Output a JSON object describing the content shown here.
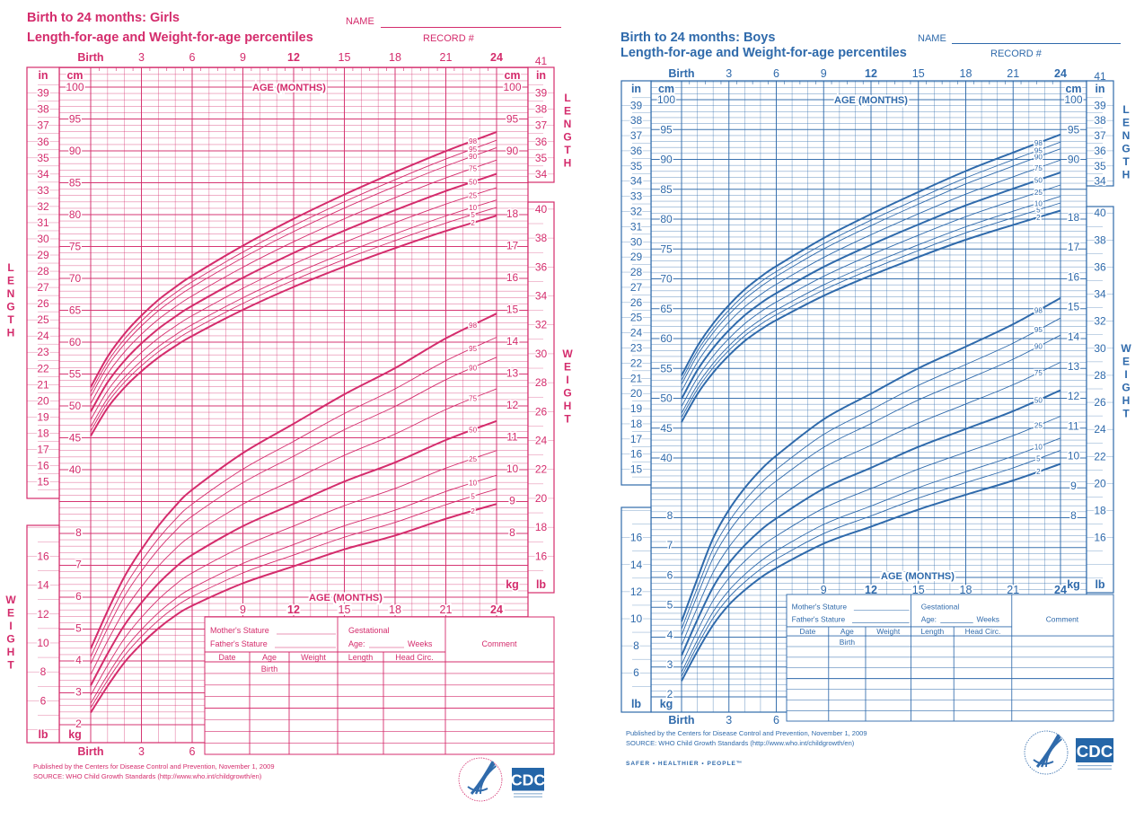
{
  "charts": [
    {
      "id": "girls",
      "color": "#d42c6c",
      "title_line1": "Birth to 24 months: Girls",
      "title_line2": "Length-for-age and Weight-for-age percentiles",
      "name_label": "NAME",
      "record_label": "RECORD #",
      "age_labels": [
        "Birth",
        "3",
        "6",
        "9",
        "12",
        "15",
        "18",
        "21",
        "24"
      ],
      "bottom_age_labels": [
        "Birth",
        "3",
        "6"
      ],
      "inner_age_labels": [
        "9",
        "12",
        "15",
        "18",
        "21",
        "24"
      ],
      "age_axis_title": "AGE (MONTHS)",
      "right_in_top": "41",
      "units": {
        "in": "in",
        "cm": "cm",
        "lb": "lb",
        "kg": "kg"
      },
      "side_words": {
        "length": "LENGTH",
        "weight": "WEIGHT"
      },
      "left_in_ticks": [
        15,
        16,
        17,
        18,
        19,
        20,
        21,
        22,
        23,
        24,
        25,
        26,
        27,
        28,
        29,
        30,
        31,
        32,
        33,
        34,
        35,
        36,
        37,
        38,
        39
      ],
      "left_cm_ticks": [
        40,
        45,
        50,
        55,
        60,
        65,
        70,
        75,
        80,
        85,
        90,
        95,
        100
      ],
      "left_kg_ticks": [
        2,
        3,
        4,
        5,
        6,
        7,
        8
      ],
      "left_lb_ticks": [
        6,
        8,
        10,
        12,
        14,
        16
      ],
      "right_cm_ticks": [
        90,
        95,
        100
      ],
      "right_kg_ticks": [
        8,
        9,
        10,
        11,
        12,
        13,
        14,
        15,
        16,
        17,
        18
      ],
      "right_in_ticks": [
        34,
        35,
        36,
        37,
        38,
        39
      ],
      "right_lb_ticks": [
        16,
        18,
        20,
        22,
        24,
        26,
        28,
        30,
        32,
        34,
        36,
        38,
        40
      ],
      "percentile_labels": [
        "2",
        "5",
        "10",
        "25",
        "50",
        "75",
        "90",
        "95",
        "98"
      ],
      "footer": {
        "published": "Published by the Centers for Disease Control and Prevention, November 1, 2009",
        "source": "SOURCE:  WHO Child Growth Standards (http://www.who.int/childgrowth/en)"
      }
    },
    {
      "id": "boys",
      "color": "#2f6aab",
      "title_line1": "Birth to 24 months: Boys",
      "title_line2": "Length-for-age and Weight-for-age percentiles",
      "name_label": "NAME",
      "record_label": "RECORD #",
      "age_labels": [
        "Birth",
        "3",
        "6",
        "9",
        "12",
        "15",
        "18",
        "21",
        "24"
      ],
      "bottom_age_labels": [
        "Birth",
        "3",
        "6"
      ],
      "inner_age_labels": [
        "9",
        "12",
        "15",
        "18",
        "21",
        "24"
      ],
      "age_axis_title": "AGE (MONTHS)",
      "right_in_top": "41",
      "units": {
        "in": "in",
        "cm": "cm",
        "lb": "lb",
        "kg": "kg"
      },
      "side_words": {
        "length": "LENGTH",
        "weight": "WEIGHT"
      },
      "left_in_ticks": [
        15,
        16,
        17,
        18,
        19,
        20,
        21,
        22,
        23,
        24,
        25,
        26,
        27,
        28,
        29,
        30,
        31,
        32,
        33,
        34,
        35,
        36,
        37,
        38,
        39
      ],
      "left_cm_ticks": [
        40,
        45,
        50,
        55,
        60,
        65,
        70,
        75,
        80,
        85,
        90,
        95,
        100
      ],
      "left_kg_ticks": [
        2,
        3,
        4,
        5,
        6,
        7,
        8
      ],
      "left_lb_ticks": [
        6,
        8,
        10,
        12,
        14,
        16
      ],
      "right_cm_ticks": [
        90,
        95,
        100
      ],
      "right_kg_ticks": [
        8,
        9,
        10,
        11,
        12,
        13,
        14,
        15,
        16,
        17,
        18
      ],
      "right_in_ticks": [
        34,
        35,
        36,
        37,
        38,
        39
      ],
      "right_lb_ticks": [
        16,
        18,
        20,
        22,
        24,
        26,
        28,
        30,
        32,
        34,
        36,
        38,
        40
      ],
      "percentile_labels": [
        "2",
        "5",
        "10",
        "25",
        "50",
        "75",
        "90",
        "95",
        "98"
      ],
      "footer": {
        "published": "Published by the Centers for Disease Control and Prevention, November 1, 2009",
        "source": "SOURCE:  WHO Child Growth Standards (http://www.who.int/childgrowth/en)",
        "slogan": "SAFER • HEALTHIER • PEOPLE™"
      }
    }
  ],
  "record_table": {
    "mothers_stature": "Mother's Stature",
    "fathers_stature": "Father's Stature",
    "gestational": "Gestational",
    "age_label": "Age:",
    "weeks": "Weeks",
    "comment": "Comment",
    "columns": [
      "Date",
      "Age",
      "Weight",
      "Length",
      "Head  Circ."
    ],
    "first_row_age": "Birth"
  },
  "logos": {
    "cdc": "CDC"
  },
  "chart_data": [
    {
      "chart": "girls",
      "type": "line",
      "title": "Length-for-age percentiles (Girls)",
      "xlabel": "AGE (MONTHS)",
      "ylabel": "LENGTH (cm)",
      "xlim": [
        0,
        24
      ],
      "ylim": [
        38,
        101
      ],
      "percentiles": [
        2,
        5,
        10,
        25,
        50,
        75,
        90,
        95,
        98
      ],
      "distribution": "normal",
      "x": [
        0,
        1,
        2,
        3,
        4,
        5,
        6,
        9,
        12,
        15,
        18,
        21,
        24
      ],
      "median": [
        49.1,
        53.7,
        57.1,
        59.8,
        62.1,
        64.0,
        65.7,
        70.1,
        74.0,
        77.5,
        80.7,
        83.7,
        86.4
      ],
      "spread": [
        1.86,
        1.95,
        2.05,
        2.13,
        2.2,
        2.25,
        2.3,
        2.45,
        2.6,
        2.75,
        2.9,
        3.05,
        3.2
      ]
    },
    {
      "chart": "girls",
      "type": "line",
      "title": "Weight-for-age percentiles (Girls)",
      "xlabel": "AGE (MONTHS)",
      "ylabel": "WEIGHT (kg)",
      "xlim": [
        0,
        24
      ],
      "ylim": [
        1.5,
        18.5
      ],
      "percentiles": [
        2,
        5,
        10,
        25,
        50,
        75,
        90,
        95,
        98
      ],
      "distribution": "lognormal",
      "x": [
        0,
        1,
        2,
        3,
        4,
        5,
        6,
        9,
        12,
        15,
        18,
        21,
        24
      ],
      "median": [
        3.2,
        4.2,
        5.1,
        5.8,
        6.4,
        6.9,
        7.3,
        8.2,
        8.9,
        9.6,
        10.2,
        10.9,
        11.5
      ],
      "spread": [
        0.15,
        0.135,
        0.127,
        0.123,
        0.121,
        0.12,
        0.12,
        0.12,
        0.121,
        0.122,
        0.124,
        0.125,
        0.125
      ]
    },
    {
      "chart": "boys",
      "type": "line",
      "title": "Length-for-age percentiles (Boys)",
      "xlabel": "AGE (MONTHS)",
      "ylabel": "LENGTH (cm)",
      "xlim": [
        0,
        24
      ],
      "ylim": [
        38,
        101
      ],
      "percentiles": [
        2,
        5,
        10,
        25,
        50,
        75,
        90,
        95,
        98
      ],
      "distribution": "normal",
      "x": [
        0,
        1,
        2,
        3,
        4,
        5,
        6,
        9,
        12,
        15,
        18,
        21,
        24
      ],
      "median": [
        49.9,
        54.7,
        58.4,
        61.4,
        63.9,
        65.9,
        67.6,
        72.0,
        75.7,
        79.1,
        82.3,
        85.1,
        87.8
      ],
      "spread": [
        1.89,
        1.95,
        2.0,
        2.05,
        2.1,
        2.15,
        2.2,
        2.35,
        2.5,
        2.65,
        2.8,
        2.95,
        3.1
      ]
    },
    {
      "chart": "boys",
      "type": "line",
      "title": "Weight-for-age percentiles (Boys)",
      "xlabel": "AGE (MONTHS)",
      "ylabel": "WEIGHT (kg)",
      "xlim": [
        0,
        24
      ],
      "ylim": [
        1.5,
        18.5
      ],
      "percentiles": [
        2,
        5,
        10,
        25,
        50,
        75,
        90,
        95,
        98
      ],
      "distribution": "lognormal",
      "x": [
        0,
        1,
        2,
        3,
        4,
        5,
        6,
        9,
        12,
        15,
        18,
        21,
        24
      ],
      "median": [
        3.3,
        4.5,
        5.6,
        6.4,
        7.0,
        7.5,
        7.9,
        8.9,
        9.6,
        10.3,
        10.9,
        11.5,
        12.2
      ],
      "spread": [
        0.145,
        0.13,
        0.125,
        0.12,
        0.118,
        0.116,
        0.115,
        0.113,
        0.112,
        0.111,
        0.11,
        0.11,
        0.11
      ]
    }
  ]
}
